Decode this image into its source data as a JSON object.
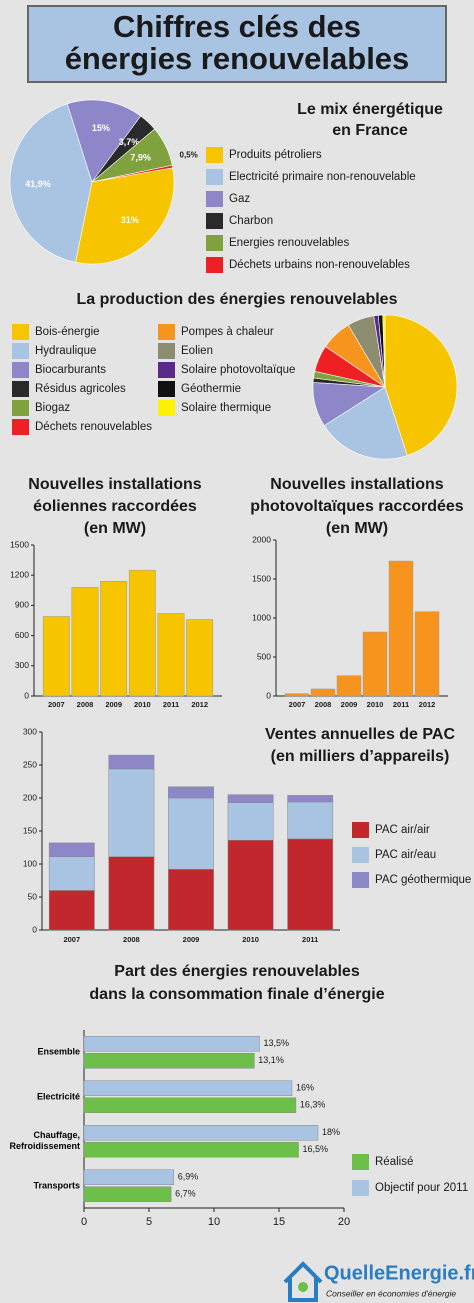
{
  "header": {
    "title": [
      "Chiffres clés des",
      "énergies renouvelables"
    ]
  },
  "chart_data": [
    {
      "type": "pie",
      "title": [
        "Le mix énergétique",
        "en France"
      ],
      "categories": [
        "Produits pétroliers",
        "Electricité primaire non-renouvelable",
        "Gaz",
        "Charbon",
        "Energies renouvelables",
        "Déchets urbains non-renouvelables"
      ],
      "values": [
        31,
        41.9,
        15,
        3.7,
        7.9,
        0.5
      ],
      "value_labels": [
        "31%",
        "41,9%",
        "15%",
        "3,7%",
        "7,9%",
        "0,5%"
      ],
      "colors": [
        "#f6c500",
        "#a9c4e2",
        "#8d86c9",
        "#2a2a2a",
        "#7fa23f",
        "#ee2024"
      ]
    },
    {
      "type": "pie",
      "title": [
        "La production des énergies renouvelables"
      ],
      "categories": [
        "Bois-énergie",
        "Hydraulique",
        "Biocarburants",
        "Résidus agricoles",
        "Biogaz",
        "Déchets renouvelables",
        "Pompes à chaleur",
        "Eolien",
        "Solaire photovoltaïque",
        "Géothermie",
        "Solaire thermique"
      ],
      "values": [
        45,
        21,
        10,
        1,
        1.5,
        6,
        7,
        6,
        1,
        1,
        0.5
      ],
      "colors": [
        "#f6c500",
        "#a9c4e2",
        "#8d86c9",
        "#2a2a2a",
        "#7fa23f",
        "#ee2024",
        "#f7941d",
        "#8c8c6e",
        "#5b2a86",
        "#111111",
        "#fff200"
      ]
    },
    {
      "type": "bar",
      "title": [
        "Nouvelles installations",
        "éoliennes raccordées",
        "(en MW)"
      ],
      "categories": [
        "2007",
        "2008",
        "2009",
        "2010",
        "2011",
        "2012"
      ],
      "values": [
        790,
        1080,
        1140,
        1250,
        820,
        760
      ],
      "color": "#f6c500",
      "ylim": [
        0,
        1500
      ],
      "yticks": [
        0,
        300,
        600,
        900,
        1200,
        1500
      ]
    },
    {
      "type": "bar",
      "title": [
        "Nouvelles installations",
        "photovoltaïques raccordées",
        "(en MW)"
      ],
      "categories": [
        "2007",
        "2008",
        "2009",
        "2010",
        "2011",
        "2012"
      ],
      "values": [
        30,
        90,
        260,
        820,
        1730,
        1080
      ],
      "color": "#f7941d",
      "ylim": [
        0,
        2000
      ],
      "yticks": [
        0,
        500,
        1000,
        1500,
        2000
      ]
    },
    {
      "type": "stacked_bar",
      "title": [
        "Ventes annuelles de PAC",
        "(en milliers d’appareils)"
      ],
      "categories": [
        "2007",
        "2008",
        "2009",
        "2010",
        "2011"
      ],
      "series": [
        {
          "name": "PAC air/air",
          "color": "#c1272d",
          "values": [
            60,
            111,
            92,
            136,
            138
          ]
        },
        {
          "name": "PAC air/eau",
          "color": "#a9c4e2",
          "values": [
            51,
            133,
            108,
            57,
            56
          ]
        },
        {
          "name": "PAC géothermique",
          "color": "#8d86c9",
          "values": [
            21,
            21,
            17,
            12,
            10
          ]
        }
      ],
      "ylim": [
        0,
        300
      ],
      "yticks": [
        0,
        50,
        100,
        150,
        200,
        250,
        300
      ]
    },
    {
      "type": "hbar",
      "title": [
        "Part des énergies renouvelables",
        "dans la consommation finale d’énergie"
      ],
      "categories": [
        "Ensemble",
        "Electricité",
        "Chauffage, Refroidissement",
        "Transports"
      ],
      "series": [
        {
          "name": "Réalisé",
          "color": "#6cc04a",
          "values": [
            13.1,
            16.3,
            16.5,
            6.7
          ],
          "value_labels": [
            "13,1%",
            "16,3%",
            "16,5%",
            "6,7%"
          ]
        },
        {
          "name": "Objectif pour 2011",
          "color": "#a9c4e2",
          "values": [
            13.5,
            16,
            18,
            6.9
          ],
          "value_labels": [
            "13,5%",
            "16%",
            "18%",
            "6,9%"
          ]
        }
      ],
      "xlim": [
        0,
        20
      ],
      "xticks": [
        0,
        5,
        10,
        15,
        20
      ]
    }
  ],
  "footer": {
    "brand": "QuelleEnergie.fr",
    "tagline": "Conseiller en économies d'énergie"
  }
}
